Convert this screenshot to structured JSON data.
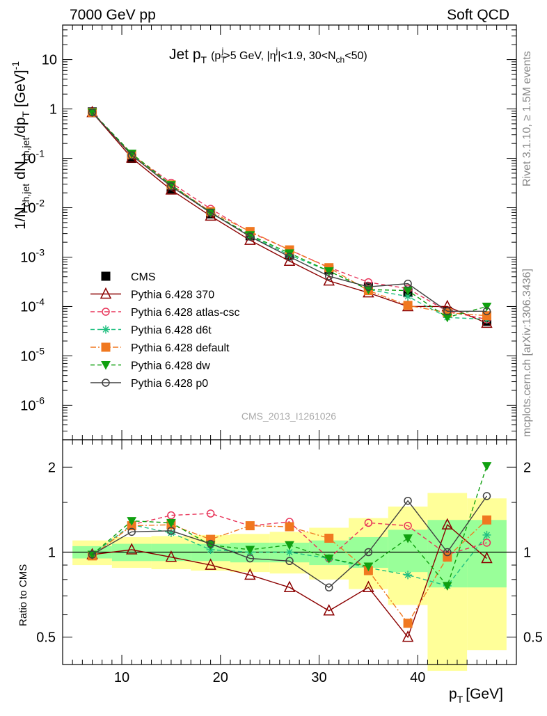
{
  "header": {
    "left": "7000 GeV pp",
    "right": "Soft QCD"
  },
  "side_labels": {
    "rivet": "Rivet 3.1.10, ≥ 1.5M events",
    "mcplots": "mcplots.cern.ch [arXiv:1306.3436]"
  },
  "watermark": "CMS_2013_I1261026",
  "plot_title": {
    "main": "Jet p",
    "sub": "T",
    "detail": "(p",
    "detail_sub": "T",
    "detail_sup": "j",
    "detail_rest": ">5 GeV, |η",
    "detail_sup2": "j",
    "detail_rest2": "|<1.9, 30<N",
    "detail_sub2": "ch",
    "detail_rest3": "<50)"
  },
  "axes": {
    "ylabel_upper": "1/N",
    "ylabel_upper_full": "1/N_ch,jet dN_ch,jet/dp_T [GeV]^-1",
    "ylabel_lower": "Ratio to CMS",
    "xlabel": "p",
    "xlabel_sub": "T",
    "xlabel_unit": "[GeV]"
  },
  "chart_data": [
    {
      "type": "line",
      "panel": "main",
      "yscale": "log",
      "xlim": [
        4,
        50
      ],
      "ylim": [
        2e-07,
        50
      ],
      "y_ticks": [
        "10",
        "1",
        "10^-1",
        "10^-2",
        "10^-3",
        "10^-4",
        "10^-5",
        "10^-6"
      ],
      "x": [
        7,
        11,
        15,
        19,
        23,
        27,
        31,
        35,
        39,
        43,
        47
      ],
      "series": [
        {
          "name": "CMS",
          "color": "#000000",
          "marker": "square-filled",
          "dash": "none",
          "values": [
            0.87,
            0.1,
            0.024,
            0.0075,
            0.0027,
            0.0011,
            0.00055,
            0.00025,
            0.00019,
            8e-05,
            5e-05
          ]
        },
        {
          "name": "Pythia 6.428 370",
          "color": "#8b0000",
          "marker": "triangle-open",
          "dash": "none",
          "values": [
            0.85,
            0.102,
            0.023,
            0.0068,
            0.0022,
            0.00083,
            0.00033,
            0.00019,
            0.0001,
            0.0001,
            4.6e-05
          ]
        },
        {
          "name": "Pythia 6.428 atlas-csc",
          "color": "#e8355a",
          "marker": "circle-open",
          "dash": "6,4",
          "values": [
            0.86,
            0.12,
            0.032,
            0.0095,
            0.0032,
            0.0014,
            0.00062,
            0.00031,
            0.00023,
            8e-05,
            5.5e-05
          ]
        },
        {
          "name": "Pythia 6.428 d6t",
          "color": "#20c080",
          "marker": "star",
          "dash": "6,4",
          "values": [
            0.86,
            0.12,
            0.028,
            0.0078,
            0.0027,
            0.0011,
            0.00052,
            0.00022,
            0.00016,
            6e-05,
            5.5e-05
          ]
        },
        {
          "name": "Pythia 6.428 default",
          "color": "#f07820",
          "marker": "square-filled",
          "dash": "8,3,2,3",
          "values": [
            0.85,
            0.12,
            0.029,
            0.0083,
            0.0033,
            0.0014,
            0.00061,
            0.00021,
            0.000105,
            7.5e-05,
            6.5e-05
          ]
        },
        {
          "name": "Pythia 6.428 dw",
          "color": "#10a010",
          "marker": "triangle-down-filled",
          "dash": "6,4",
          "values": [
            0.86,
            0.125,
            0.029,
            0.008,
            0.0028,
            0.0012,
            0.00052,
            0.00022,
            0.00021,
            6e-05,
            0.0001
          ]
        },
        {
          "name": "Pythia 6.428 p0",
          "color": "#404040",
          "marker": "circle-open",
          "dash": "none",
          "values": [
            0.85,
            0.115,
            0.027,
            0.008,
            0.0026,
            0.00102,
            0.00041,
            0.00025,
            0.00029,
            8e-05,
            8e-05
          ]
        }
      ]
    },
    {
      "type": "line",
      "panel": "ratio",
      "yscale": "log",
      "xlim": [
        4,
        50
      ],
      "ylim": [
        0.4,
        2.5
      ],
      "y_ticks": [
        "0.5",
        "1",
        "2"
      ],
      "x_ticks": [
        "10",
        "20",
        "30",
        "40"
      ],
      "x": [
        7,
        11,
        15,
        19,
        23,
        27,
        31,
        35,
        39,
        43,
        47
      ],
      "bands": {
        "bin_edges": [
          5,
          9,
          13,
          17,
          21,
          25,
          29,
          33,
          37,
          41,
          45,
          49
        ],
        "green_lo": [
          0.95,
          0.93,
          0.93,
          0.93,
          0.92,
          0.92,
          0.9,
          0.88,
          0.85,
          0.75,
          0.75
        ],
        "green_hi": [
          1.05,
          1.07,
          1.07,
          1.07,
          1.08,
          1.08,
          1.1,
          1.13,
          1.2,
          1.3,
          1.3
        ],
        "yellow_lo": [
          0.9,
          0.88,
          0.87,
          0.86,
          0.85,
          0.84,
          0.8,
          0.74,
          0.65,
          0.38,
          0.45
        ],
        "yellow_hi": [
          1.1,
          1.13,
          1.14,
          1.15,
          1.16,
          1.18,
          1.22,
          1.32,
          1.45,
          1.62,
          1.55
        ]
      },
      "series": [
        {
          "name": "Pythia 6.428 370",
          "values": [
            0.98,
            1.02,
            0.96,
            0.9,
            0.83,
            0.75,
            0.62,
            0.75,
            0.5,
            1.25,
            0.95
          ]
        },
        {
          "name": "Pythia 6.428 atlas-csc",
          "values": [
            0.98,
            1.25,
            1.35,
            1.37,
            1.24,
            1.28,
            0.95,
            1.27,
            1.24,
            0.98,
            1.08
          ]
        },
        {
          "name": "Pythia 6.428 d6t",
          "values": [
            0.98,
            1.25,
            1.17,
            1.02,
            1.0,
            1.0,
            0.95,
            0.88,
            0.83,
            0.76,
            1.15
          ]
        },
        {
          "name": "Pythia 6.428 default",
          "values": [
            0.97,
            1.24,
            1.25,
            1.11,
            1.24,
            1.23,
            1.12,
            0.86,
            0.56,
            0.96,
            1.3
          ]
        },
        {
          "name": "Pythia 6.428 dw",
          "values": [
            0.98,
            1.29,
            1.27,
            1.06,
            1.02,
            1.06,
            0.95,
            0.89,
            1.12,
            0.76,
            2.02
          ]
        },
        {
          "name": "Pythia 6.428 p0",
          "values": [
            0.98,
            1.18,
            1.19,
            1.07,
            0.95,
            0.93,
            0.75,
            1.0,
            1.52,
            1.0,
            1.58
          ]
        }
      ]
    }
  ]
}
